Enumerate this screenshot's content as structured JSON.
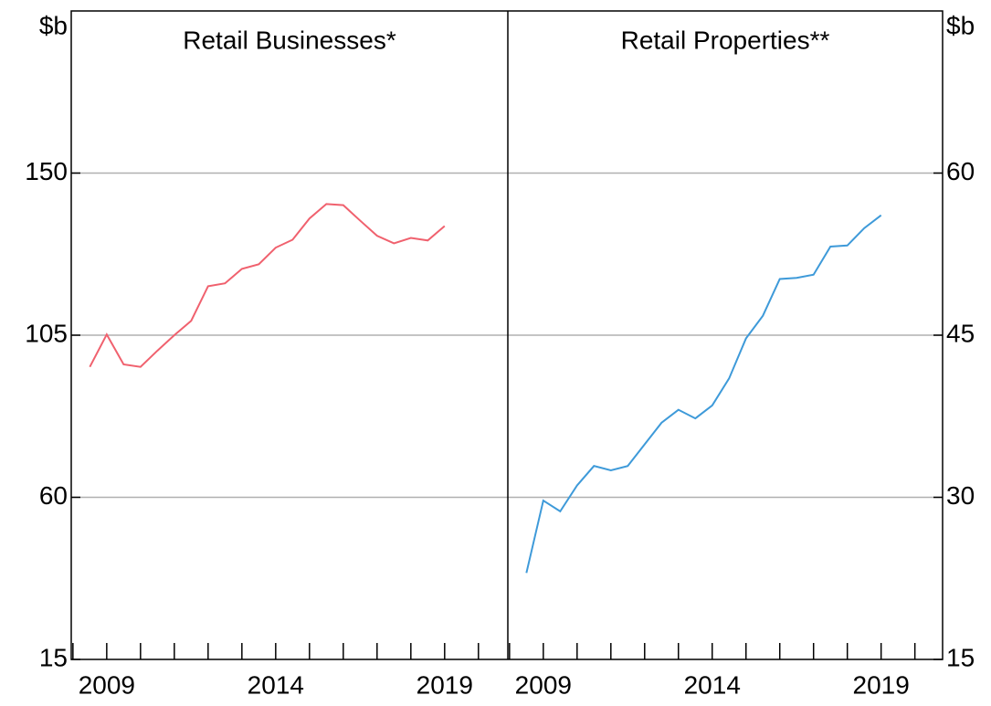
{
  "chart_data": [
    {
      "type": "line",
      "subtitle": "Retail Businesses*",
      "ylabel": "$b",
      "x": [
        2008.5,
        2009,
        2009.5,
        2010,
        2010.5,
        2011,
        2011.5,
        2012,
        2012.5,
        2013,
        2013.5,
        2014,
        2014.5,
        2015,
        2015.5,
        2016,
        2016.5,
        2017,
        2017.5,
        2018,
        2018.5,
        2019
      ],
      "series": [
        {
          "color": "#f0616e",
          "values": [
            96.2,
            105.2,
            96.9,
            96.2,
            100.7,
            105,
            109,
            118.6,
            119.4,
            123.4,
            124.7,
            129.3,
            131.5,
            137.4,
            141.4,
            141.1,
            136.8,
            132.6,
            130.5,
            132,
            131.3,
            135.3
          ]
        }
      ],
      "xlim": [
        2007.95,
        2020.87
      ],
      "xticks": [
        2009,
        2014,
        2019
      ],
      "xticks_minor": [
        2008,
        2009,
        2010,
        2011,
        2012,
        2013,
        2014,
        2015,
        2016,
        2017,
        2018,
        2019,
        2020
      ],
      "ylim": [
        15,
        195
      ],
      "yticks": [
        15,
        60,
        105,
        150
      ],
      "grid": true,
      "yaxis_side": "left"
    },
    {
      "type": "line",
      "subtitle": "Retail Properties**",
      "ylabel": "$b",
      "x": [
        2008.5,
        2009,
        2009.5,
        2010,
        2010.5,
        2011,
        2011.5,
        2012,
        2012.5,
        2013,
        2013.5,
        2014,
        2014.5,
        2015,
        2015.5,
        2016,
        2016.5,
        2017,
        2017.5,
        2018,
        2018.5,
        2019
      ],
      "series": [
        {
          "color": "#3e9ad9",
          "values": [
            23.0,
            29.7,
            28.7,
            31.1,
            32.9,
            32.5,
            32.9,
            34.9,
            36.9,
            38.1,
            37.3,
            38.5,
            41.0,
            44.7,
            46.8,
            50.2,
            50.3,
            50.6,
            53.2,
            53.3,
            54.9,
            56.1
          ]
        }
      ],
      "xlim": [
        2007.95,
        2020.82
      ],
      "xticks": [
        2009,
        2014,
        2019
      ],
      "xticks_minor": [
        2008,
        2009,
        2010,
        2011,
        2012,
        2013,
        2014,
        2015,
        2016,
        2017,
        2018,
        2019,
        2020
      ],
      "ylim": [
        15,
        75
      ],
      "yticks": [
        15,
        30,
        45,
        60
      ],
      "grid": true,
      "yaxis_side": "right"
    }
  ]
}
